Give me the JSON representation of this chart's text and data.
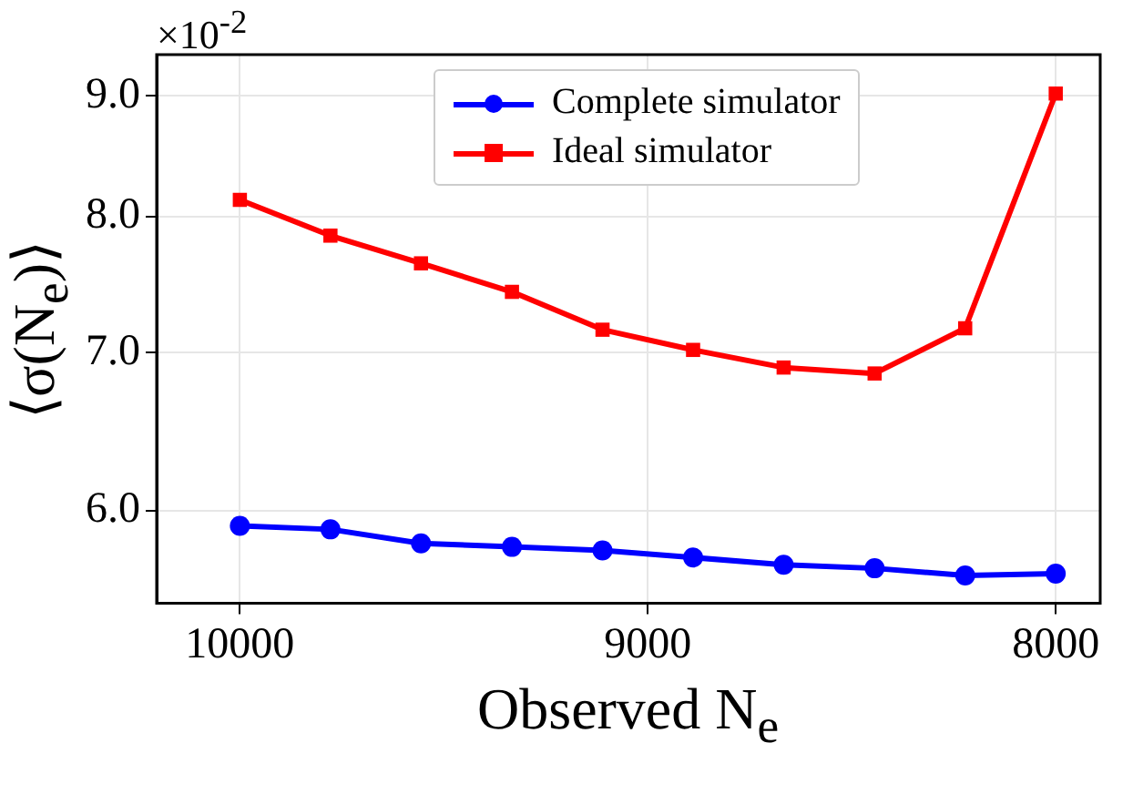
{
  "chart_data": {
    "type": "line",
    "xlabel": "Observed N$_{e}$",
    "ylabel": "⟨σ(N$_{e}$)⟩",
    "annotations": [
      "×10$^{-2}$"
    ],
    "x": [
      10000,
      9778,
      9556,
      9333,
      9111,
      8889,
      8667,
      8444,
      8222,
      8000
    ],
    "series": [
      {
        "name": "Complete simulator",
        "color": "#0000ff",
        "marker": "circle",
        "values": [
          5.91,
          5.89,
          5.81,
          5.79,
          5.77,
          5.73,
          5.69,
          5.67,
          5.63,
          5.64
        ]
      },
      {
        "name": "Ideal simulator",
        "color": "#ff0000",
        "marker": "square",
        "values": [
          8.13,
          7.85,
          7.64,
          7.43,
          7.16,
          7.02,
          6.9,
          6.86,
          7.17,
          9.02
        ]
      }
    ],
    "xlim": [
      10204,
      7891
    ],
    "xticks": [
      10000,
      9000,
      8000
    ],
    "ylim": [
      5.48,
      9.37
    ],
    "yticks": [
      {
        "value": 6,
        "label": "6.0"
      },
      {
        "value": 7,
        "label": "7.0"
      },
      {
        "value": 8,
        "label": "8.0"
      },
      {
        "value": 9,
        "label": "9.0"
      }
    ],
    "log": "y",
    "grid": true,
    "legend": "top"
  }
}
